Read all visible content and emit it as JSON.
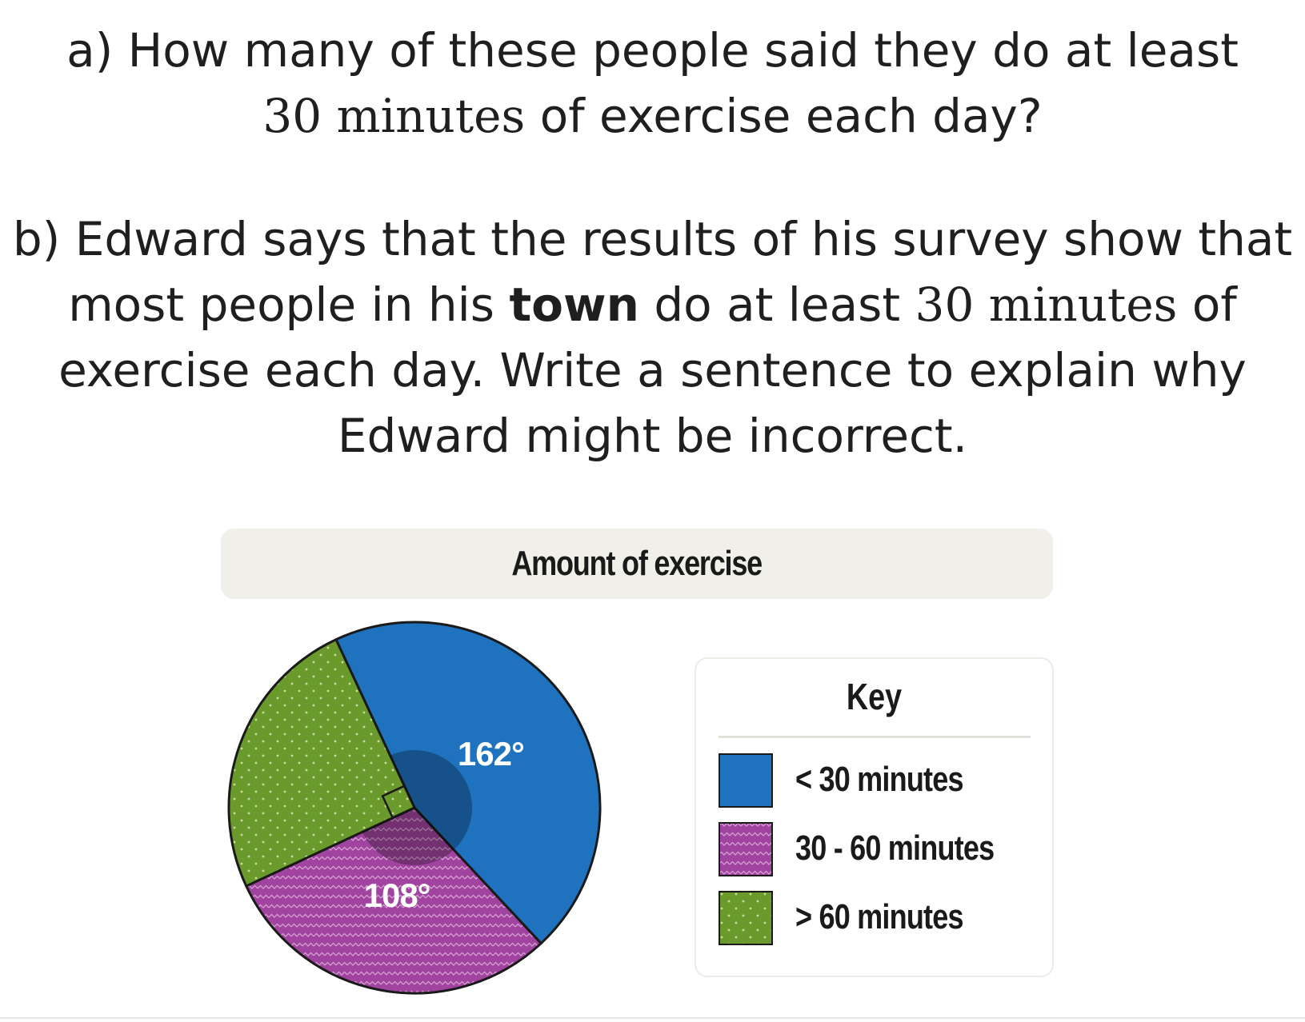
{
  "question_a": {
    "prefix": "a) How many of these people said they do at least",
    "math": "30 minutes",
    "suffix": " of exercise each day?"
  },
  "question_b": {
    "part1": "b) Edward says that the results of his survey show that most people in his ",
    "bold_word": "town",
    "part2": " do at least ",
    "math": "30 minutes",
    "part3": " of exercise each day. Write a sentence to explain why Edward might be incorrect."
  },
  "chart_data": {
    "type": "pie",
    "title": "Amount of exercise",
    "legend_title": "Key",
    "slices": [
      {
        "label": "< 30 minutes",
        "angle_deg": 162,
        "angle_label": "162°",
        "color": "#1f72be",
        "pattern": "solid"
      },
      {
        "label": "30 - 60 minutes",
        "angle_deg": 108,
        "angle_label": "108°",
        "color": "#a0449f",
        "pattern": "zigzag"
      },
      {
        "label": "> 60 minutes",
        "angle_deg": 90,
        "angle_label": "",
        "color": "#6b9a2c",
        "pattern": "dots",
        "right_angle_marker": true
      }
    ],
    "legend_position": "right"
  }
}
